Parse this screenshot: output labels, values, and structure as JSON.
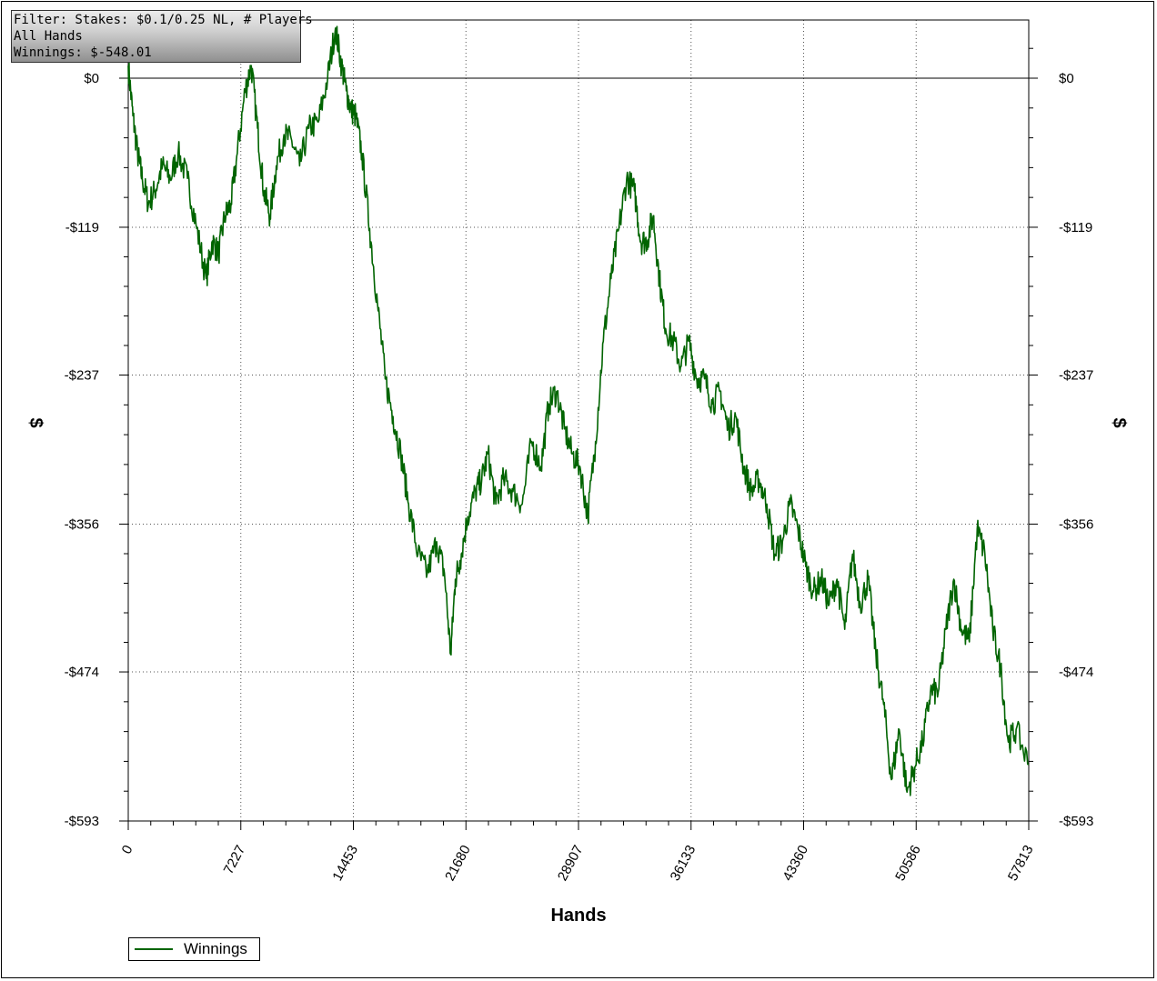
{
  "chart_data": {
    "type": "line",
    "xlabel": "Hands",
    "ylabel": "$",
    "xlim": [
      0,
      57813
    ],
    "ylim": [
      -593,
      45
    ],
    "x_ticks": [
      "0",
      "7227",
      "14453",
      "21680",
      "28907",
      "36133",
      "43360",
      "50586",
      "57813"
    ],
    "y_ticks": [
      "$0",
      "-$119",
      "-$237",
      "-$356",
      "-$474",
      "-$593"
    ],
    "y_tick_values": [
      0,
      -119,
      -237,
      -356,
      -474,
      -593
    ],
    "grid": true,
    "legend_position": "bottom-left",
    "series": [
      {
        "name": "Winnings",
        "color": "#006400",
        "x": [
          0,
          300,
          600,
          900,
          1300,
          1700,
          2200,
          2700,
          3200,
          3800,
          4400,
          5000,
          5400,
          5800,
          6200,
          6600,
          7000,
          7500,
          7900,
          8300,
          8700,
          9100,
          9500,
          10000,
          10500,
          11000,
          11600,
          12200,
          12800,
          13300,
          13700,
          14000,
          14300,
          14600,
          15000,
          15500,
          16000,
          16500,
          17000,
          17500,
          18000,
          18600,
          19200,
          19800,
          20300,
          20700,
          21000,
          21300,
          21800,
          22300,
          22700,
          23100,
          23600,
          24100,
          24700,
          25300,
          25900,
          26500,
          27000,
          27500,
          28000,
          28500,
          29000,
          29500,
          30000,
          30500,
          31000,
          31500,
          32000,
          32500,
          32900,
          33300,
          33700,
          34100,
          34500,
          35000,
          35500,
          36000,
          36500,
          37000,
          37500,
          38000,
          38500,
          39000,
          39500,
          40000,
          40500,
          41000,
          41500,
          42000,
          42500,
          43000,
          43500,
          44000,
          44500,
          45000,
          45500,
          46000,
          46500,
          47000,
          47500,
          48000,
          48500,
          49000,
          49500,
          50000,
          50500,
          51000,
          51500,
          52000,
          52500,
          53000,
          53500,
          54000,
          54500,
          55000,
          55500,
          56000,
          56500,
          57000,
          57813
        ],
        "values": [
          10,
          -30,
          -60,
          -80,
          -100,
          -90,
          -70,
          -80,
          -60,
          -80,
          -120,
          -160,
          -130,
          -140,
          -110,
          -100,
          -60,
          -10,
          10,
          -40,
          -90,
          -110,
          -70,
          -45,
          -50,
          -70,
          -40,
          -35,
          0,
          40,
          10,
          -10,
          -25,
          -30,
          -60,
          -120,
          -180,
          -240,
          -270,
          -300,
          -340,
          -380,
          -395,
          -370,
          -395,
          -460,
          -400,
          -385,
          -350,
          -330,
          -320,
          -300,
          -340,
          -320,
          -330,
          -340,
          -290,
          -310,
          -260,
          -250,
          -280,
          -300,
          -310,
          -350,
          -290,
          -210,
          -160,
          -120,
          -80,
          -90,
          -130,
          -130,
          -110,
          -160,
          -200,
          -210,
          -230,
          -210,
          -240,
          -240,
          -260,
          -250,
          -280,
          -270,
          -310,
          -330,
          -320,
          -340,
          -380,
          -370,
          -340,
          -360,
          -390,
          -410,
          -400,
          -420,
          -400,
          -440,
          -380,
          -420,
          -400,
          -460,
          -500,
          -560,
          -520,
          -570,
          -550,
          -530,
          -490,
          -490,
          -440,
          -400,
          -440,
          -450,
          -360,
          -380,
          -440,
          -470,
          -530,
          -520,
          -548
        ]
      }
    ]
  },
  "info": {
    "filter": "Filter: Stakes: $0.1/0.25 NL, # Players",
    "hands": "All Hands",
    "winnings": "Winnings: $-548.01"
  }
}
